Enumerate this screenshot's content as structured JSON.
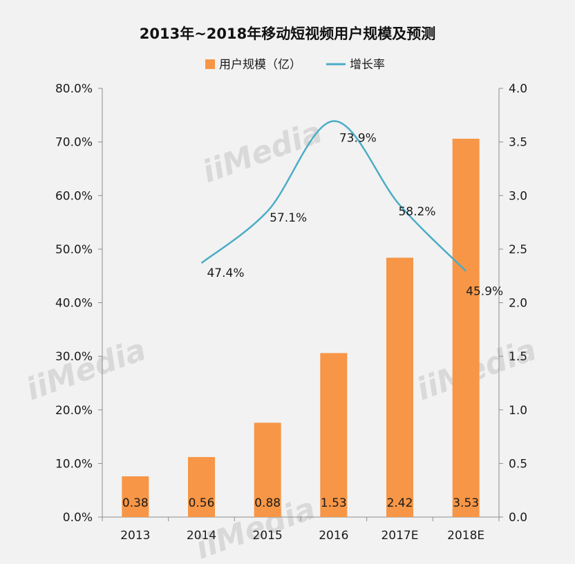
{
  "watermark": "iiMedia",
  "chart_data": {
    "type": "bar",
    "title": "2013年~2018年移动短视频用户规模及预测",
    "categories": [
      "2013",
      "2014",
      "2015",
      "2016",
      "2017E",
      "2018E"
    ],
    "series": [
      {
        "name": "用户规模（亿）",
        "kind": "bar",
        "axis": "right",
        "color": "#f79646",
        "values": [
          0.38,
          0.56,
          0.88,
          1.53,
          2.42,
          3.53
        ],
        "labels": [
          "0.38",
          "0.56",
          "0.88",
          "1.53",
          "2.42",
          "3.53"
        ]
      },
      {
        "name": "增长率",
        "kind": "line",
        "axis": "left",
        "color": "#4bacc6",
        "values": [
          null,
          47.4,
          57.1,
          73.9,
          58.2,
          45.9
        ],
        "labels": [
          "",
          "47.4%",
          "57.1%",
          "73.9%",
          "58.2%",
          "45.9%"
        ]
      }
    ],
    "left_axis": {
      "range": [
        0,
        80
      ],
      "ticks": [
        "0.0%",
        "10.0%",
        "20.0%",
        "30.0%",
        "40.0%",
        "50.0%",
        "60.0%",
        "70.0%",
        "80.0%"
      ]
    },
    "right_axis": {
      "range": [
        0,
        4
      ],
      "ticks": [
        "0.0",
        "0.5",
        "1.0",
        "1.5",
        "2.0",
        "2.5",
        "3.0",
        "3.5",
        "4.0"
      ]
    },
    "legend_position": "top",
    "grid": false
  }
}
